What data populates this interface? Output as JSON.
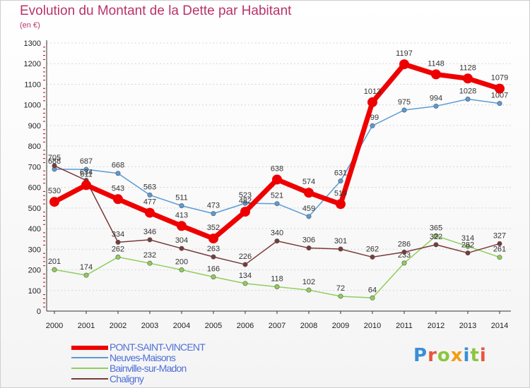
{
  "header": {
    "title": "Evolution du Montant de la Dette par Habitant",
    "subtitle": "(en €)"
  },
  "logo": {
    "letters": [
      "P",
      "r",
      "o",
      "x",
      "i",
      "t",
      "i"
    ],
    "colors": [
      "#3a8fd6",
      "#e8553e",
      "#8cc63f",
      "#f39c12",
      "#3a8fd6",
      "#8cc63f",
      "#e8553e"
    ]
  },
  "chart_data": {
    "type": "line",
    "categories": [
      "2000",
      "2001",
      "2002",
      "2003",
      "2004",
      "2005",
      "2006",
      "2007",
      "2008",
      "2009",
      "2010",
      "2011",
      "2012",
      "2013",
      "2014"
    ],
    "y_ticks": [
      "0",
      "100",
      "200",
      "300",
      "400",
      "500",
      "600",
      "700",
      "800",
      "900",
      "1000",
      "1100",
      "1200",
      "1300"
    ],
    "ylim": [
      0,
      1300
    ],
    "grid": true,
    "legend_position": "bottom-left",
    "series": [
      {
        "name": "Neuves-Maisons",
        "color": "#5b9bd5",
        "values": [
          688,
          687,
          668,
          563,
          511,
          473,
          523,
          521,
          459,
          631,
          899,
          975,
          994,
          1028,
          1007
        ],
        "labels": [
          "688",
          "687",
          "668",
          "563",
          "511",
          "473",
          "523",
          "521",
          "459",
          "631",
          "899",
          "975",
          "994",
          "1028",
          "1007"
        ]
      },
      {
        "name": "Bainville-sur-Madon",
        "color": "#8fce5a",
        "values": [
          201,
          174,
          262,
          232,
          200,
          166,
          134,
          118,
          102,
          72,
          64,
          233,
          365,
          314,
          261
        ],
        "labels": [
          "201",
          "174",
          "262",
          "232",
          "200",
          "166",
          "134",
          "118",
          "102",
          "72",
          "64",
          "233",
          "365",
          "314",
          "261"
        ]
      },
      {
        "name": "Chaligny",
        "color": "#7a3a3a",
        "values": [
          705,
          634,
          334,
          346,
          304,
          263,
          226,
          340,
          306,
          301,
          262,
          286,
          322,
          282,
          327
        ],
        "labels": [
          "705",
          "634",
          "334",
          "346",
          "304",
          "263",
          "226",
          "340",
          "306",
          "301",
          "262",
          "286",
          "322",
          "282",
          "327"
        ]
      },
      {
        "name": "PONT-SAINT-VINCENT",
        "color": "#ee0000",
        "values": [
          530,
          611,
          543,
          477,
          413,
          352,
          482,
          638,
          574,
          519,
          1013,
          1197,
          1148,
          1128,
          1079
        ],
        "labels": [
          "530",
          "611",
          "543",
          "477",
          "413",
          "352",
          "482",
          "638",
          "574",
          "519",
          "1013",
          "1197",
          "1148",
          "1128",
          "1079"
        ]
      }
    ]
  }
}
